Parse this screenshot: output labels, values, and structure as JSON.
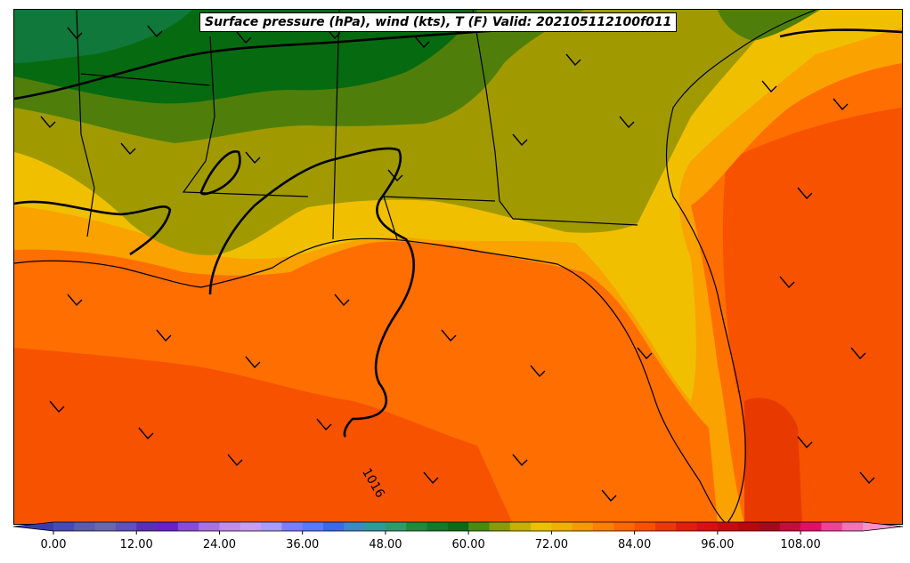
{
  "title": "Surface pressure (hPa), wind (kts), T (F) Valid: 202105112100f011",
  "isobar_label": "1016",
  "colorbar": {
    "tick_labels": [
      "0.00",
      "12.00",
      "24.00",
      "36.00",
      "48.00",
      "60.00",
      "72.00",
      "84.00",
      "96.00",
      "108.00"
    ],
    "colors": [
      "#3b3bb0",
      "#4848b8",
      "#5c5cae",
      "#6a66b4",
      "#5f4fbf",
      "#5a2fb6",
      "#6a20c4",
      "#8a4ad8",
      "#a870e6",
      "#c08cf0",
      "#c89cf8",
      "#a89cff",
      "#7c7cff",
      "#5a78f8",
      "#3a6ae8",
      "#3c88c8",
      "#2e9a9e",
      "#2e9a70",
      "#1e8a3e",
      "#137a2a",
      "#0d6a14",
      "#4a8a10",
      "#8a9a0a",
      "#c8b000",
      "#f0c000",
      "#f8ae00",
      "#fc9800",
      "#ff8000",
      "#ff6800",
      "#f85000",
      "#e83a00",
      "#e02000",
      "#d81010",
      "#c80c0c",
      "#b8080c",
      "#a8081a",
      "#c80a3c",
      "#e0106a",
      "#f0409a",
      "#f870b8",
      "#ff90cc"
    ]
  },
  "colors": {
    "gulf_orange": "#ff6e00",
    "deep_orange": "#f75200",
    "amber": "#faa200",
    "yellow": "#f0c000",
    "olive": "#a09a00",
    "green": "#4f7f0a",
    "dark_green": "#066a10",
    "forest_green": "#10783a"
  }
}
